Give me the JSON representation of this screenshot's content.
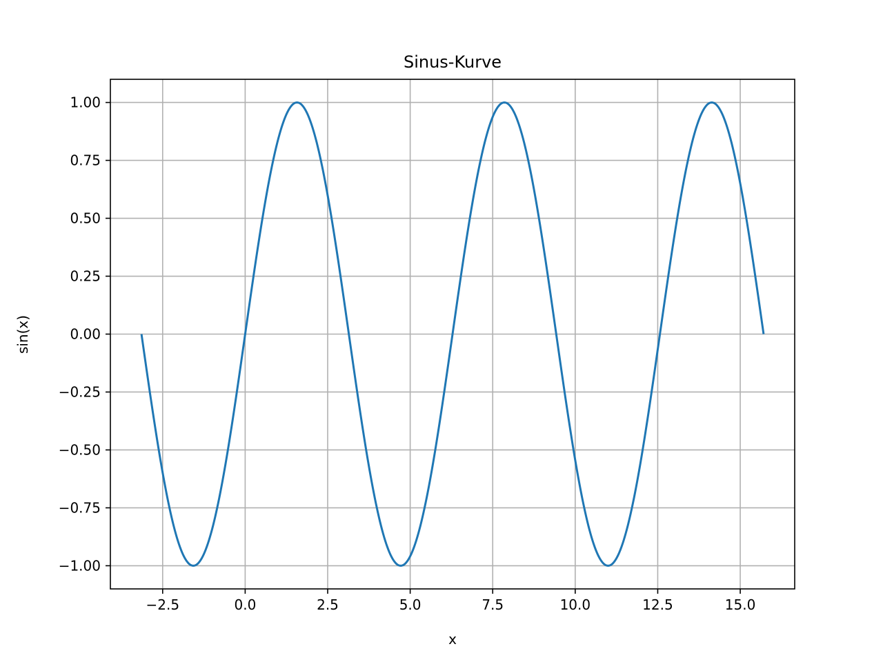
{
  "chart_data": {
    "type": "line",
    "title": "Sinus-Kurve",
    "xlabel": "x",
    "ylabel": "sin(x)",
    "xlim": [
      -4.084,
      16.65
    ],
    "ylim": [
      -1.1,
      1.1
    ],
    "grid": true,
    "legend": "none",
    "x_ticks": [
      -2.5,
      0.0,
      2.5,
      5.0,
      7.5,
      10.0,
      12.5,
      15.0
    ],
    "x_tick_labels": [
      "−2.5",
      "0.0",
      "2.5",
      "5.0",
      "7.5",
      "10.0",
      "12.5",
      "15.0"
    ],
    "y_ticks": [
      -1.0,
      -0.75,
      -0.5,
      -0.25,
      0.0,
      0.25,
      0.5,
      0.75,
      1.0
    ],
    "y_tick_labels": [
      "−1.00",
      "−0.75",
      "−0.50",
      "−0.25",
      "0.00",
      "0.25",
      "0.50",
      "0.75",
      "1.00"
    ],
    "colors": {
      "series": "#1f77b4",
      "grid": "#b0b0b0",
      "axes": "#000000"
    },
    "series": [
      {
        "function": "sin",
        "x": [
          -3.1416,
          -2.3562,
          -1.5708,
          -0.7854,
          0.0,
          0.7854,
          1.5708,
          2.3562,
          3.1416,
          3.927,
          4.7124,
          5.4978,
          6.2832,
          7.0686,
          7.854,
          8.6394,
          9.4248,
          10.2102,
          10.9956,
          11.781,
          12.5664,
          13.3518,
          14.1372,
          14.9226,
          15.708
        ],
        "y": [
          0.0,
          -0.7071,
          -1.0,
          -0.7071,
          0.0,
          0.7071,
          1.0,
          0.7071,
          0.0,
          -0.7071,
          -1.0,
          -0.7071,
          0.0,
          0.7071,
          1.0,
          0.7071,
          0.0,
          -0.7071,
          -1.0,
          -0.7071,
          0.0,
          0.7071,
          1.0,
          0.7071,
          0.0
        ]
      }
    ]
  }
}
